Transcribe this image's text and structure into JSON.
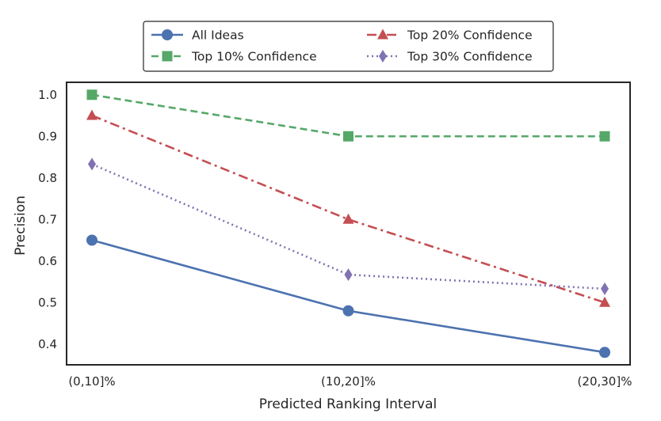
{
  "chart_data": {
    "type": "line",
    "categories": [
      "(0,10]%",
      "(10,20]%",
      "(20,30]%"
    ],
    "xlabel": "Predicted Ranking Interval",
    "ylabel": "Precision",
    "ylim": [
      0.35,
      1.03
    ],
    "yticks": [
      0.4,
      0.5,
      0.6,
      0.7,
      0.8,
      0.9,
      1.0
    ],
    "ytick_labels": [
      "0.4",
      "0.5",
      "0.6",
      "0.7",
      "0.8",
      "0.9",
      "1.0"
    ],
    "grid": false,
    "legend_position": "top-center",
    "series": [
      {
        "name": "All Ideas",
        "values": [
          0.65,
          0.48,
          0.38
        ],
        "color": "#4c72b0",
        "marker": "circle",
        "linestyle": "solid"
      },
      {
        "name": "Top 10% Confidence",
        "values": [
          1.0,
          0.9,
          0.9
        ],
        "color": "#55a868",
        "marker": "square",
        "linestyle": "dashed"
      },
      {
        "name": "Top 20% Confidence",
        "values": [
          0.95,
          0.7,
          0.5
        ],
        "color": "#c44e52",
        "marker": "triangle",
        "linestyle": "dashdot"
      },
      {
        "name": "Top 30% Confidence",
        "values": [
          0.833,
          0.567,
          0.533
        ],
        "color": "#8172b3",
        "marker": "diamond",
        "linestyle": "dotted"
      }
    ]
  }
}
